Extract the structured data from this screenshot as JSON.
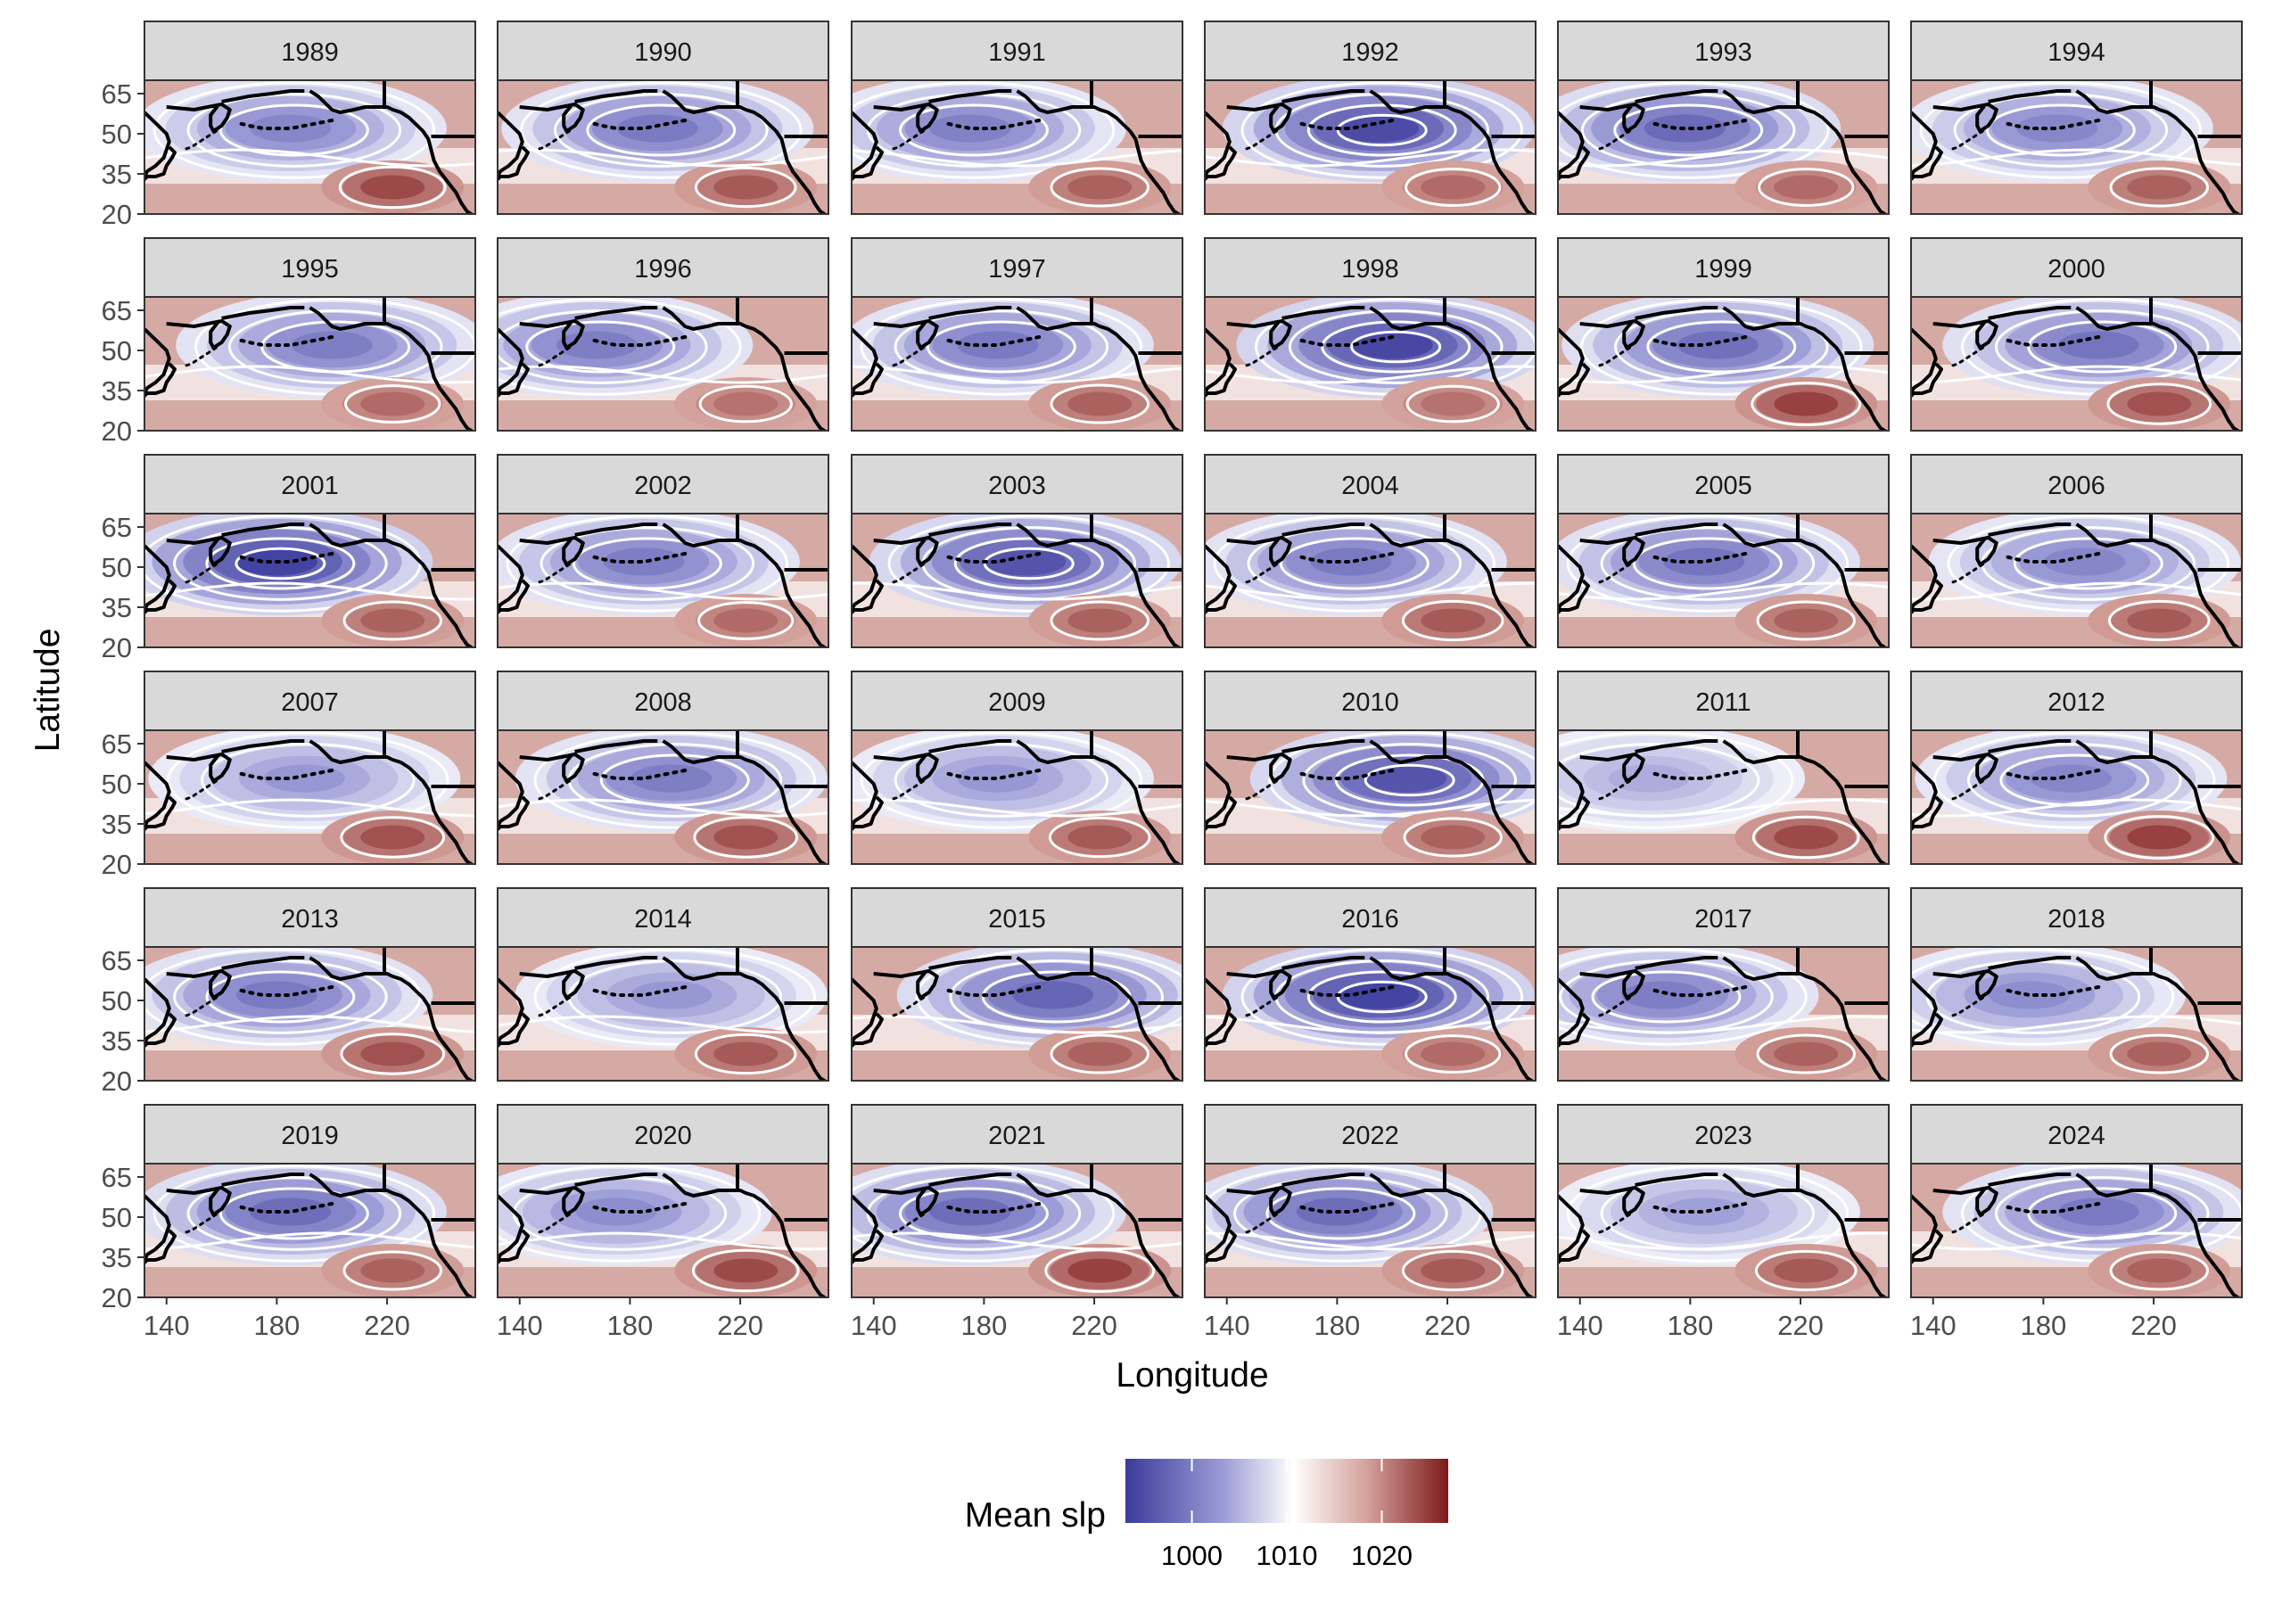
{
  "chart_data": {
    "type": "heatmap",
    "subtype": "faceted map with contour overlay",
    "facet_years": [
      "1989",
      "1990",
      "1991",
      "1992",
      "1993",
      "1994",
      "1995",
      "1996",
      "1997",
      "1998",
      "1999",
      "2000",
      "2001",
      "2002",
      "2003",
      "2004",
      "2005",
      "2006",
      "2007",
      "2008",
      "2009",
      "2010",
      "2011",
      "2012",
      "2013",
      "2014",
      "2015",
      "2016",
      "2017",
      "2018",
      "2019",
      "2020",
      "2021",
      "2022",
      "2023",
      "2024"
    ],
    "facet_layout": {
      "rows": 6,
      "cols": 6
    },
    "xlabel": "Longitude",
    "ylabel": "Latitude",
    "x_ticks": [
      "140",
      "180",
      "220"
    ],
    "y_ticks": [
      "65",
      "50",
      "35",
      "20"
    ],
    "xlim": [
      132,
      252
    ],
    "ylim": [
      20,
      70
    ],
    "legend": {
      "title": "Mean slp",
      "ticks": [
        "1000",
        "1010",
        "1020"
      ],
      "range": [
        993,
        1027
      ],
      "colors": [
        "#3b3b9c",
        "#8f8fd0",
        "#ffffff",
        "#d9a5a0",
        "#7d1a1a"
      ],
      "position": "bottom"
    },
    "low_intensity": [
      0.55,
      0.62,
      0.58,
      0.9,
      0.72,
      0.55,
      0.6,
      0.6,
      0.62,
      0.92,
      0.68,
      0.65,
      0.95,
      0.6,
      0.85,
      0.62,
      0.65,
      0.55,
      0.45,
      0.6,
      0.45,
      0.85,
      0.35,
      0.55,
      0.62,
      0.45,
      0.75,
      0.95,
      0.6,
      0.5,
      0.7,
      0.5,
      0.7,
      0.7,
      0.4,
      0.62
    ],
    "low_center_lon": [
      185,
      190,
      175,
      195,
      178,
      185,
      200,
      168,
      185,
      200,
      190,
      200,
      180,
      185,
      195,
      185,
      185,
      195,
      190,
      195,
      185,
      205,
      165,
      190,
      180,
      195,
      205,
      195,
      170,
      175,
      185,
      175,
      175,
      180,
      185,
      200
    ],
    "high_intensity": [
      0.7,
      0.6,
      0.55,
      0.5,
      0.5,
      0.55,
      0.5,
      0.45,
      0.55,
      0.45,
      0.75,
      0.65,
      0.55,
      0.5,
      0.55,
      0.6,
      0.55,
      0.6,
      0.65,
      0.65,
      0.6,
      0.55,
      0.7,
      0.75,
      0.65,
      0.6,
      0.55,
      0.5,
      0.55,
      0.55,
      0.55,
      0.7,
      0.75,
      0.6,
      0.6,
      0.55
    ],
    "grid": false,
    "land_outline_color": "#000000",
    "contour_color": "#ffffff",
    "strip_background": "#d9d9d9"
  }
}
